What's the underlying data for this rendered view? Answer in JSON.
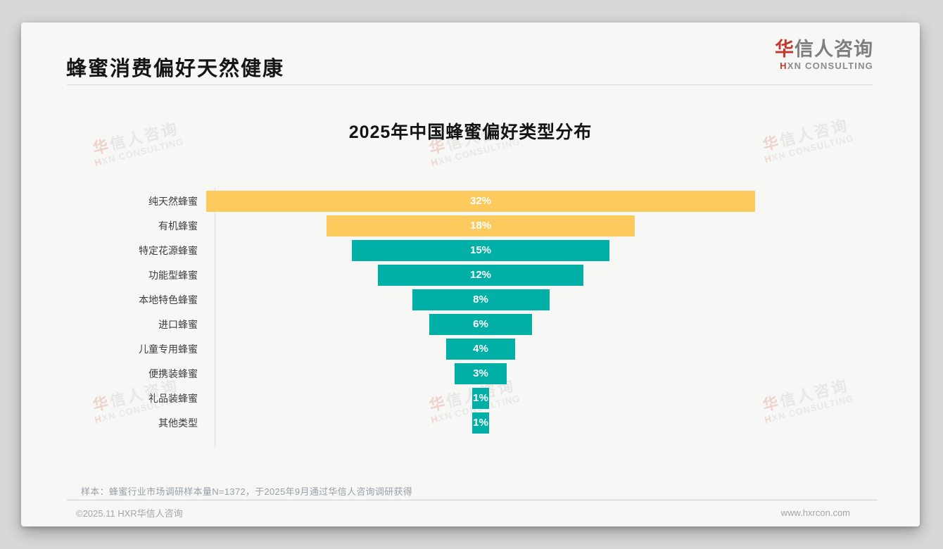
{
  "page": {
    "title": "蜂蜜消费偏好天然健康",
    "footer_note": "样本：蜂蜜行业市场调研样本量N=1372，于2025年9月通过华信人咨询调研获得",
    "copyright": "©2025.11 HXR华信人咨询",
    "website": "www.hxrcon.com"
  },
  "brand": {
    "logo_cn_first": "华",
    "logo_cn_rest": "信人咨询",
    "logo_en_first": "H",
    "logo_en_rest": "XN CONSULTING"
  },
  "watermark": {
    "cn_first": "华",
    "cn_rest": "信人咨询",
    "en_first": "H",
    "en_rest": "XN CONSULTING"
  },
  "colors": {
    "accent_yellow": "#fcca5d",
    "accent_teal": "#00b0a6",
    "brand_red": "#c13a30",
    "card_background": "#f7f7f5",
    "page_background": "#d8d8d8"
  },
  "chart_data": {
    "type": "bar",
    "variant": "horizontal-centered-funnel",
    "title": "2025年中国蜂蜜偏好类型分布",
    "orientation": "horizontal",
    "alignment": "center",
    "grid": false,
    "legend": false,
    "xlim": [
      0,
      32
    ],
    "categories": [
      "纯天然蜂蜜",
      "有机蜂蜜",
      "特定花源蜂蜜",
      "功能型蜂蜜",
      "本地特色蜂蜜",
      "进口蜂蜜",
      "儿童专用蜂蜜",
      "便携装蜂蜜",
      "礼品装蜂蜜",
      "其他类型"
    ],
    "values": [
      32,
      18,
      15,
      12,
      8,
      6,
      4,
      3,
      1,
      1
    ],
    "value_labels": [
      "32%",
      "18%",
      "15%",
      "12%",
      "8%",
      "6%",
      "4%",
      "3%",
      "1%",
      "1%"
    ],
    "bar_colors": [
      "#fcca5d",
      "#fcca5d",
      "#00b0a6",
      "#00b0a6",
      "#00b0a6",
      "#00b0a6",
      "#00b0a6",
      "#00b0a6",
      "#00b0a6",
      "#00b0a6"
    ],
    "value_label_color": "#ffffff"
  }
}
